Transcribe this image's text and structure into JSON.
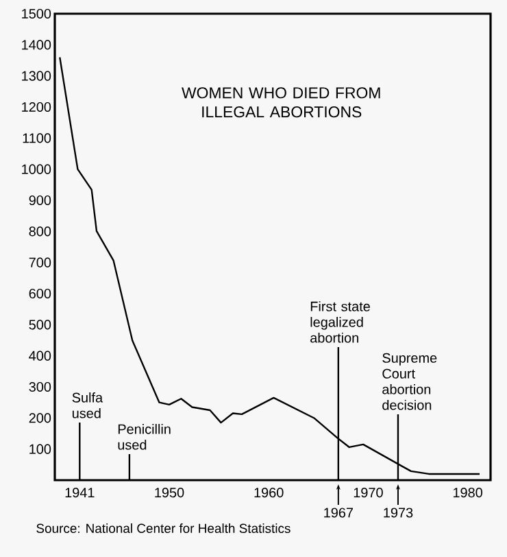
{
  "chart_data": {
    "type": "line",
    "title": "WOMEN WHO DIED FROM ILLEGAL ABORTIONS",
    "x": [
      1939,
      1940.8,
      1942.2,
      1942.7,
      1944.4,
      1946.3,
      1949,
      1950,
      1951.2,
      1952.3,
      1954.1,
      1955.2,
      1956.4,
      1957.3,
      1960.5,
      1964.6,
      1966.9,
      1968.1,
      1969.5,
      1973.4,
      1974.3,
      1976.1,
      1979.3,
      1981.2
    ],
    "values": [
      1360,
      1000,
      934,
      801,
      706,
      449,
      250,
      243,
      262,
      235,
      225,
      185,
      215,
      212,
      265,
      199,
      136,
      106,
      115,
      45,
      29,
      20,
      20,
      20
    ],
    "color": "#000000",
    "xlim": [
      1938.5,
      1982.3
    ],
    "ylim": [
      0,
      1500
    ],
    "xticks": [
      1941,
      1950,
      1960,
      1970,
      1980
    ],
    "yticks": [
      100,
      200,
      300,
      400,
      500,
      600,
      700,
      800,
      900,
      1000,
      1100,
      1200,
      1300,
      1400,
      1500
    ],
    "grid": false,
    "legend": false,
    "marker": "none",
    "line_style": "solid",
    "ref_lines": [
      {
        "axis": "x",
        "value": 1941,
        "label": "Sulfa used"
      },
      {
        "axis": "x",
        "value": 1946,
        "label": "Penicillin used"
      },
      {
        "axis": "x",
        "value": 1967,
        "label": "First state legalized abortion"
      },
      {
        "axis": "x",
        "value": 1973,
        "label": "Supreme Court abortion decision"
      }
    ],
    "annotations": [
      {
        "text": "1967",
        "x": 1967,
        "y": 0
      },
      {
        "text": "1973",
        "x": 1973,
        "y": 0
      },
      "Source: National Center for Health Statistics"
    ]
  }
}
